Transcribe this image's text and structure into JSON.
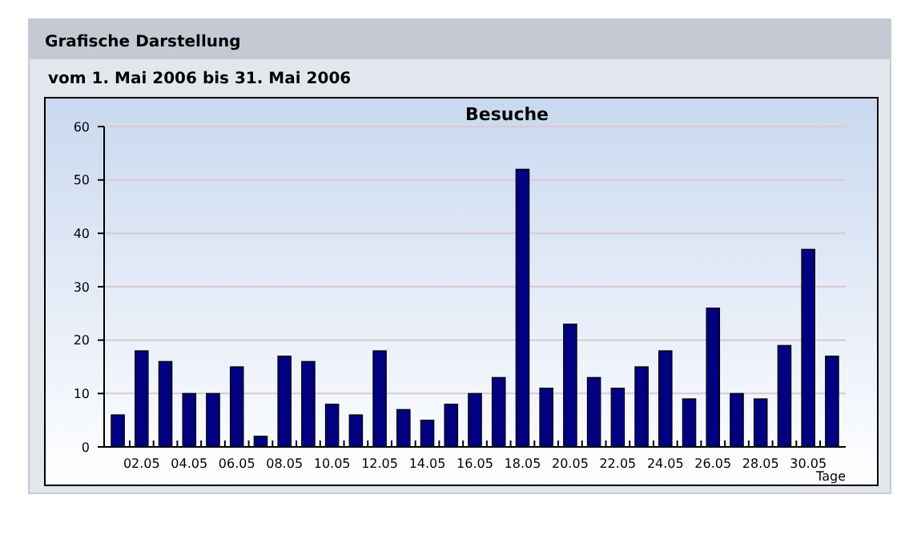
{
  "chart_data": {
    "type": "bar",
    "title": "Besuche",
    "xlabel": "Tage",
    "annotations": [
      "Grafische Darstellung",
      "vom 1. Mai 2006  bis 31. Mai 2006"
    ],
    "categories": [
      null,
      "02.05",
      null,
      "04.05",
      null,
      "06.05",
      null,
      "08.05",
      null,
      "10.05",
      null,
      "12.05",
      null,
      "14.05",
      null,
      "16.05",
      null,
      "18.05",
      null,
      "20.05",
      null,
      "22.05",
      null,
      "24.05",
      null,
      "26.05",
      null,
      "28.05",
      null,
      "30.05",
      null
    ],
    "values": [
      6,
      18,
      16,
      10,
      10,
      15,
      2,
      17,
      16,
      8,
      6,
      18,
      7,
      5,
      8,
      10,
      13,
      52,
      11,
      23,
      13,
      11,
      15,
      18,
      9,
      26,
      10,
      9,
      19,
      37,
      17
    ],
    "color": "#000080",
    "ylim": [
      0,
      60
    ],
    "yticks": [
      0,
      10,
      20,
      30,
      40,
      50,
      60
    ],
    "grid": "y"
  }
}
